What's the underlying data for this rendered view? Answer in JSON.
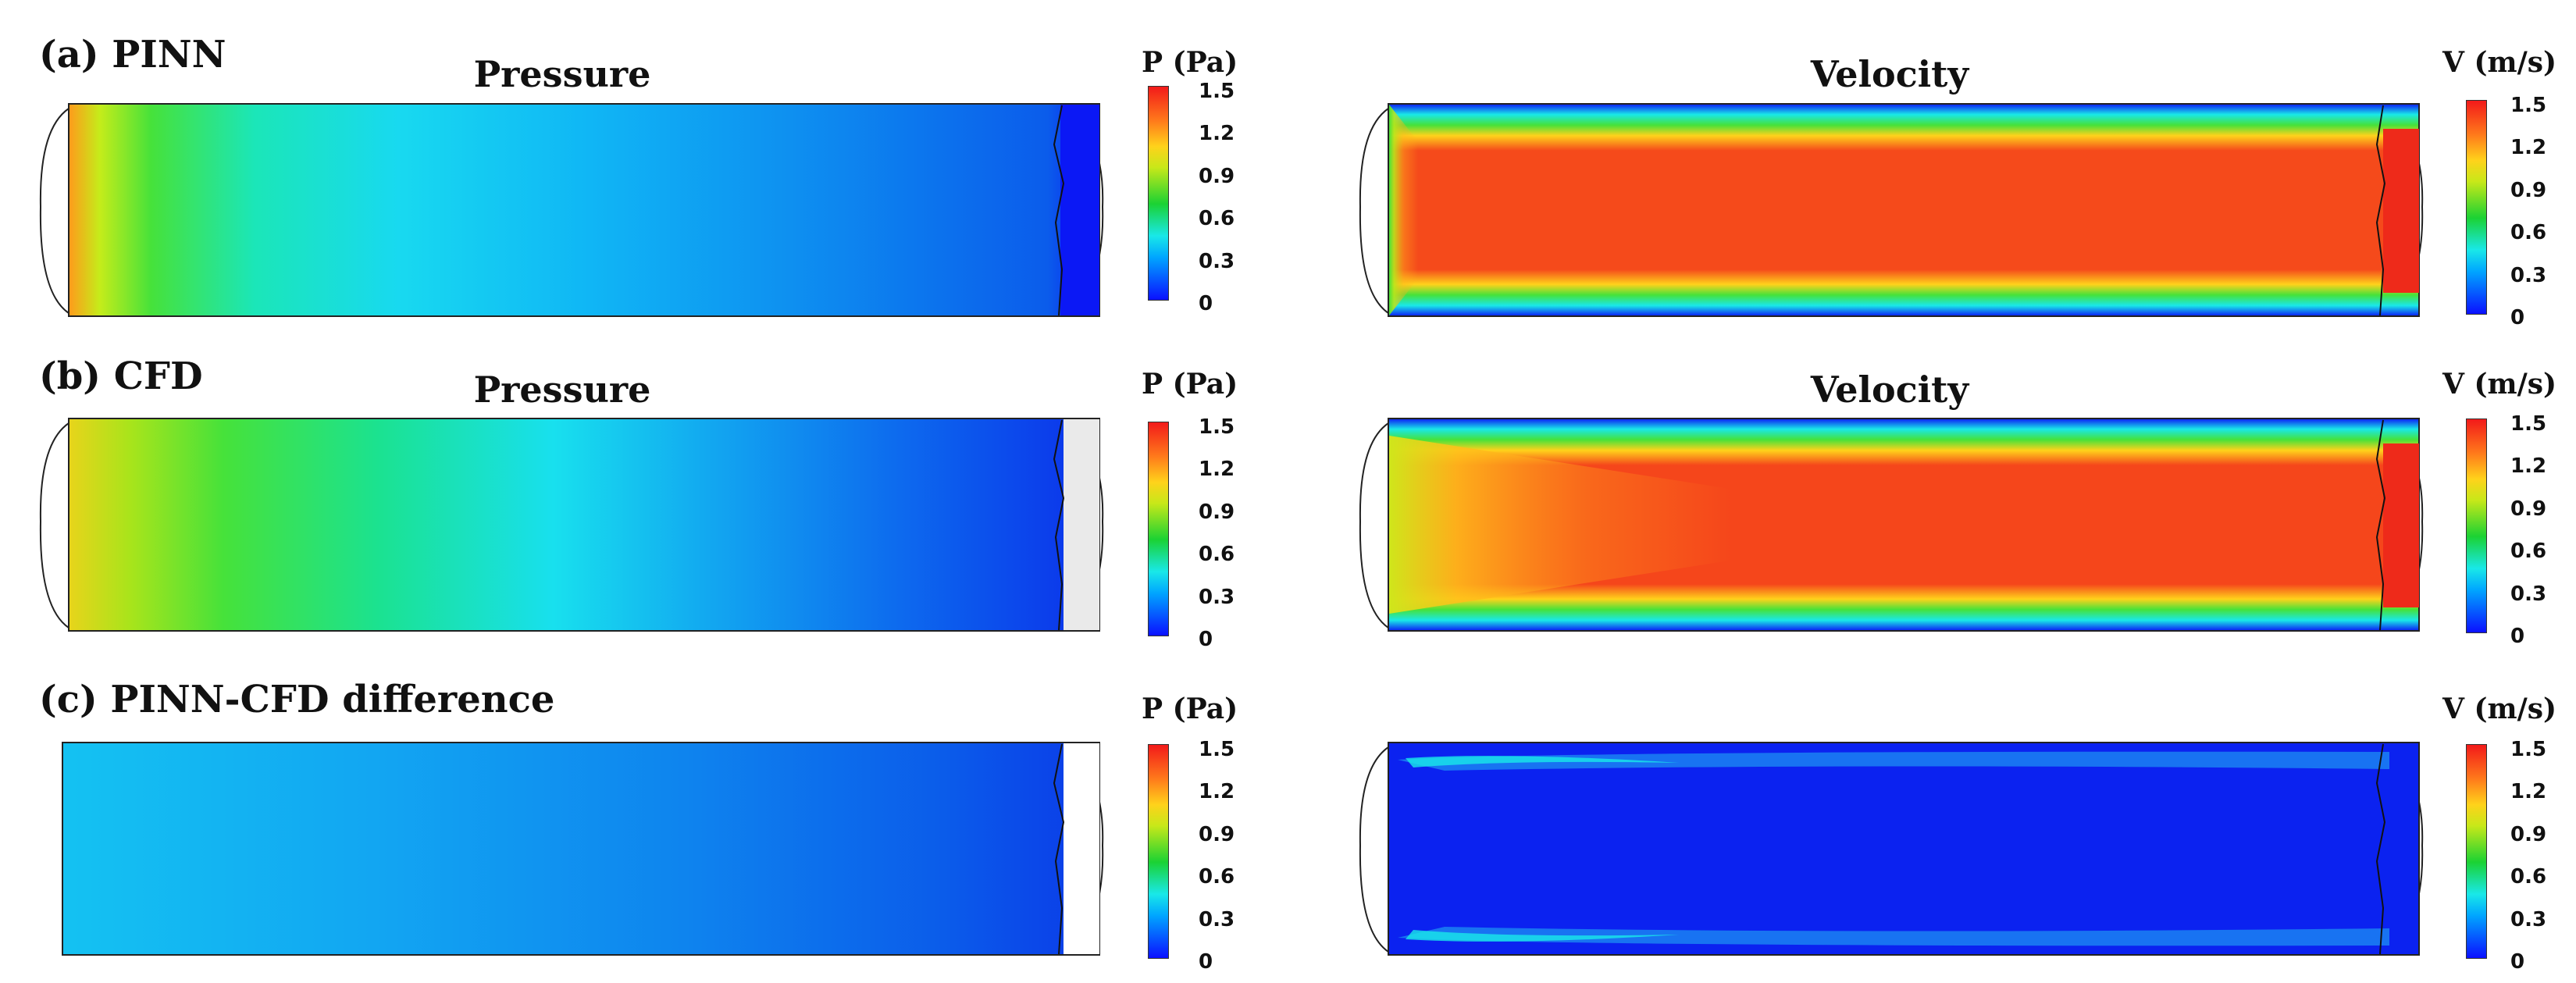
{
  "rows": [
    {
      "label": "(a) PINN",
      "pressure_title": "Pressure",
      "velocity_title": "Velocity"
    },
    {
      "label": "(b) CFD",
      "pressure_title": "Pressure",
      "velocity_title": "Velocity"
    },
    {
      "label": "(c) PINN-CFD difference",
      "pressure_title": "",
      "velocity_title": ""
    }
  ],
  "colorbars": {
    "pressure_label": "P (Pa)",
    "velocity_label": "V (m/s)",
    "ticks": [
      "1.5",
      "1.2",
      "0.9",
      "0.6",
      "0.3",
      "0"
    ]
  },
  "colors": {
    "low": "#0b10ff",
    "mid_low": "#19e8e8",
    "mid": "#1bd233",
    "mid_high": "#ffd21b",
    "high": "#f21a1a"
  }
}
